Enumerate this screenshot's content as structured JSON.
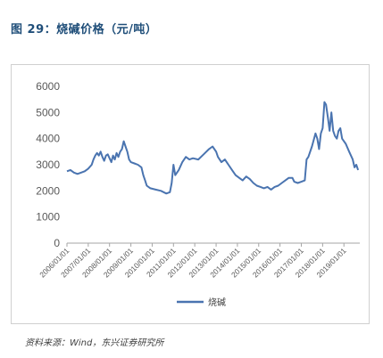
{
  "figure": {
    "title": "图 29：烧碱价格（元/吨）",
    "source": "资料来源：Wind，东兴证券研究所"
  },
  "colors": {
    "series": "#4a74b0",
    "title": "#1f4e79"
  },
  "chart_data": {
    "type": "line",
    "title": "",
    "xlabel": "",
    "ylabel": "",
    "ylim": [
      0,
      6000
    ],
    "yticks": [
      0,
      1000,
      2000,
      3000,
      4000,
      5000,
      6000
    ],
    "xlim": [
      "2006-01-01",
      "2019-09-30"
    ],
    "xticks": [
      "2006/01/01",
      "2007/01/01",
      "2008/01/01",
      "2009/01/01",
      "2010/01/01",
      "2011/01/01",
      "2012/01/01",
      "2013/01/01",
      "2014/01/01",
      "2015/01/01",
      "2016/01/01",
      "2017/01/01",
      "2018/01/01",
      "2019/01/01"
    ],
    "grid": false,
    "legend": "bottom",
    "series": [
      {
        "name": "烧碱",
        "color": "#4a74b0",
        "points": [
          [
            "2006-01-01",
            2750
          ],
          [
            "2006-03-01",
            2800
          ],
          [
            "2006-05-01",
            2700
          ],
          [
            "2006-07-01",
            2650
          ],
          [
            "2006-09-01",
            2700
          ],
          [
            "2006-11-01",
            2750
          ],
          [
            "2007-01-01",
            2850
          ],
          [
            "2007-03-01",
            3000
          ],
          [
            "2007-04-01",
            3200
          ],
          [
            "2007-05-01",
            3350
          ],
          [
            "2007-06-01",
            3450
          ],
          [
            "2007-07-01",
            3350
          ],
          [
            "2007-08-01",
            3500
          ],
          [
            "2007-09-01",
            3300
          ],
          [
            "2007-10-01",
            3150
          ],
          [
            "2007-11-01",
            3350
          ],
          [
            "2007-12-01",
            3400
          ],
          [
            "2008-01-01",
            3250
          ],
          [
            "2008-02-01",
            3100
          ],
          [
            "2008-03-01",
            3350
          ],
          [
            "2008-04-01",
            3200
          ],
          [
            "2008-05-01",
            3450
          ],
          [
            "2008-06-01",
            3300
          ],
          [
            "2008-07-01",
            3500
          ],
          [
            "2008-08-01",
            3600
          ],
          [
            "2008-09-01",
            3900
          ],
          [
            "2008-10-01",
            3700
          ],
          [
            "2008-11-01",
            3500
          ],
          [
            "2008-12-01",
            3200
          ],
          [
            "2009-01-01",
            3100
          ],
          [
            "2009-03-01",
            3050
          ],
          [
            "2009-05-01",
            3000
          ],
          [
            "2009-07-01",
            2900
          ],
          [
            "2009-08-01",
            2600
          ],
          [
            "2009-09-01",
            2400
          ],
          [
            "2009-10-01",
            2200
          ],
          [
            "2009-12-01",
            2100
          ],
          [
            "2010-03-01",
            2050
          ],
          [
            "2010-06-01",
            2000
          ],
          [
            "2010-09-01",
            1900
          ],
          [
            "2010-11-01",
            1950
          ],
          [
            "2010-12-01",
            2300
          ],
          [
            "2011-01-01",
            3000
          ],
          [
            "2011-02-01",
            2600
          ],
          [
            "2011-04-01",
            2800
          ],
          [
            "2011-06-01",
            3100
          ],
          [
            "2011-08-01",
            3300
          ],
          [
            "2011-10-01",
            3200
          ],
          [
            "2011-12-01",
            3250
          ],
          [
            "2012-03-01",
            3200
          ],
          [
            "2012-06-01",
            3400
          ],
          [
            "2012-09-01",
            3600
          ],
          [
            "2012-11-01",
            3700
          ],
          [
            "2013-01-01",
            3500
          ],
          [
            "2013-02-01",
            3300
          ],
          [
            "2013-04-01",
            3100
          ],
          [
            "2013-06-01",
            3200
          ],
          [
            "2013-08-01",
            3000
          ],
          [
            "2013-10-01",
            2800
          ],
          [
            "2013-12-01",
            2600
          ],
          [
            "2014-02-01",
            2500
          ],
          [
            "2014-04-01",
            2400
          ],
          [
            "2014-06-01",
            2550
          ],
          [
            "2014-08-01",
            2450
          ],
          [
            "2014-10-01",
            2300
          ],
          [
            "2014-12-01",
            2200
          ],
          [
            "2015-02-01",
            2150
          ],
          [
            "2015-04-01",
            2100
          ],
          [
            "2015-06-01",
            2150
          ],
          [
            "2015-08-01",
            2050
          ],
          [
            "2015-10-01",
            2150
          ],
          [
            "2015-12-01",
            2200
          ],
          [
            "2016-02-01",
            2300
          ],
          [
            "2016-04-01",
            2400
          ],
          [
            "2016-06-01",
            2500
          ],
          [
            "2016-08-01",
            2500
          ],
          [
            "2016-09-01",
            2350
          ],
          [
            "2016-11-01",
            2300
          ],
          [
            "2017-01-01",
            2350
          ],
          [
            "2017-03-01",
            2400
          ],
          [
            "2017-04-01",
            3200
          ],
          [
            "2017-05-01",
            3300
          ],
          [
            "2017-07-01",
            3700
          ],
          [
            "2017-09-01",
            4200
          ],
          [
            "2017-10-01",
            4000
          ],
          [
            "2017-11-01",
            3600
          ],
          [
            "2017-12-01",
            4200
          ],
          [
            "2018-01-01",
            4400
          ],
          [
            "2018-02-01",
            5400
          ],
          [
            "2018-03-01",
            5300
          ],
          [
            "2018-04-01",
            4800
          ],
          [
            "2018-05-01",
            4300
          ],
          [
            "2018-06-01",
            5000
          ],
          [
            "2018-07-01",
            4300
          ],
          [
            "2018-08-01",
            4100
          ],
          [
            "2018-09-01",
            4000
          ],
          [
            "2018-10-01",
            4300
          ],
          [
            "2018-11-01",
            4400
          ],
          [
            "2018-12-01",
            4000
          ],
          [
            "2019-02-01",
            3800
          ],
          [
            "2019-04-01",
            3500
          ],
          [
            "2019-06-01",
            3200
          ],
          [
            "2019-07-01",
            2900
          ],
          [
            "2019-08-01",
            3000
          ],
          [
            "2019-09-01",
            2800
          ]
        ]
      }
    ]
  }
}
